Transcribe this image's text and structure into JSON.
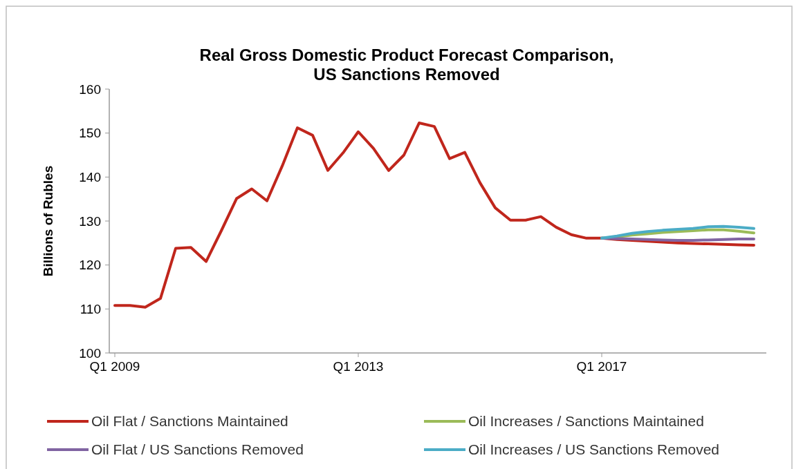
{
  "chart_data": {
    "type": "line",
    "title": "Real Gross Domestic Product Forecast Comparison,\nUS Sanctions Removed",
    "ylabel": "Billions of Rubles",
    "categories": [
      "Q1 2009",
      null,
      null,
      null,
      null,
      null,
      null,
      null,
      null,
      null,
      null,
      null,
      null,
      null,
      null,
      null,
      "Q1 2013",
      null,
      null,
      null,
      null,
      null,
      null,
      null,
      null,
      null,
      null,
      null,
      null,
      null,
      null,
      null,
      "Q1 2017",
      null,
      null,
      null,
      null,
      null,
      null,
      null,
      null,
      null,
      null
    ],
    "series": [
      {
        "name": "Oil Flat / Sanctions Maintained",
        "color": "#c0261c",
        "values": [
          110.8,
          110.8,
          110.4,
          112.4,
          123.8,
          124.0,
          120.8,
          127.8,
          135.1,
          137.3,
          134.6,
          142.5,
          151.2,
          149.5,
          141.5,
          145.5,
          150.3,
          146.5,
          141.5,
          145.0,
          152.3,
          151.5,
          144.2,
          145.6,
          138.7,
          133.0,
          130.2,
          130.2,
          131.0,
          128.6,
          126.9,
          126.1,
          126.1,
          125.8,
          125.6,
          125.4,
          125.2,
          125.0,
          124.9,
          124.8,
          124.7,
          124.6,
          124.5
        ]
      },
      {
        "name": "Oil Increases / Sanctions Maintained",
        "color": "#9bbb59",
        "values": [
          null,
          null,
          null,
          null,
          null,
          null,
          null,
          null,
          null,
          null,
          null,
          null,
          null,
          null,
          null,
          null,
          null,
          null,
          null,
          null,
          null,
          null,
          null,
          null,
          null,
          null,
          null,
          null,
          null,
          null,
          null,
          null,
          126.1,
          126.4,
          126.8,
          127.1,
          127.4,
          127.6,
          127.8,
          128.0,
          128.0,
          127.7,
          127.3
        ]
      },
      {
        "name": "Oil Flat / US Sanctions Removed",
        "color": "#8064a2",
        "values": [
          null,
          null,
          null,
          null,
          null,
          null,
          null,
          null,
          null,
          null,
          null,
          null,
          null,
          null,
          null,
          null,
          null,
          null,
          null,
          null,
          null,
          null,
          null,
          null,
          null,
          null,
          null,
          null,
          null,
          null,
          null,
          null,
          126.1,
          126.0,
          125.9,
          125.8,
          125.7,
          125.6,
          125.6,
          125.7,
          125.8,
          125.9,
          125.9
        ]
      },
      {
        "name": "Oil Increases / US Sanctions Removed",
        "color": "#4bacc6",
        "values": [
          null,
          null,
          null,
          null,
          null,
          null,
          null,
          null,
          null,
          null,
          null,
          null,
          null,
          null,
          null,
          null,
          null,
          null,
          null,
          null,
          null,
          null,
          null,
          null,
          null,
          null,
          null,
          null,
          null,
          null,
          null,
          null,
          126.1,
          126.6,
          127.2,
          127.6,
          127.9,
          128.1,
          128.3,
          128.7,
          128.8,
          128.6,
          128.3
        ]
      }
    ],
    "ylim": [
      100,
      160
    ],
    "yticks": [
      100,
      110,
      120,
      130,
      140,
      150,
      160
    ],
    "grid": false,
    "legend": "bottom",
    "marker": "none",
    "line_style": "solid"
  }
}
